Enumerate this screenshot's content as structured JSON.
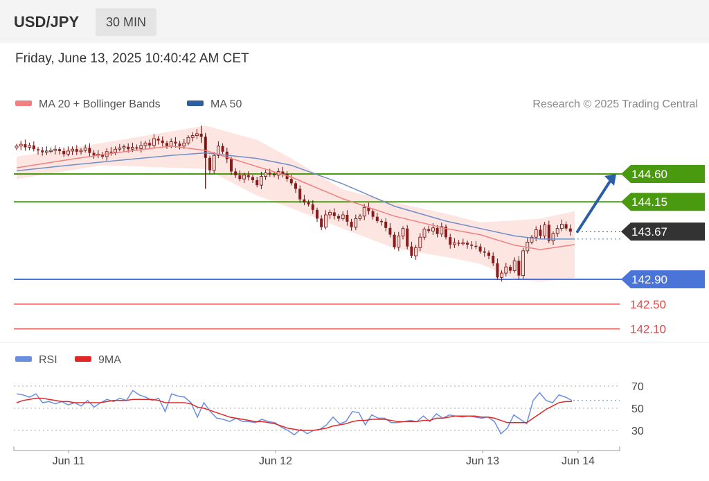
{
  "header": {
    "symbol": "USD/JPY",
    "timeframe": "30 MIN",
    "datetime": "Friday, June 13, 2025 10:40:42 AM CET"
  },
  "legend": {
    "ma20_label": "MA 20 + Bollinger Bands",
    "ma50_label": "MA 50",
    "credit": "Research © 2025 Trading Central",
    "rsi_label": "RSI",
    "rsi_ma_label": "9MA"
  },
  "colors": {
    "ma20": "#f08080",
    "ma50": "#2f5f9f",
    "resistance": "#4a9a10",
    "support_blue": "#4a74d8",
    "support_red": "#e04848",
    "bull": "#f5d5cf",
    "bear": "#8b1a1a",
    "arrow": "#2a5fa8",
    "current": "#333333",
    "rsi": "#6a8fe0",
    "rsi_ma": "#e02828",
    "band": "#fde0dc"
  },
  "chart_data": [
    {
      "type": "candlestick",
      "title": "USD/JPY 30 MIN",
      "x_labels": [
        "Jun 11",
        "Jun 12",
        "Jun 13",
        "Jun 14"
      ],
      "ylim": [
        141.9,
        146.3
      ],
      "levels": [
        {
          "value": 144.6,
          "label": "144.60",
          "kind": "resistance"
        },
        {
          "value": 144.15,
          "label": "144.15",
          "kind": "resistance"
        },
        {
          "value": 143.67,
          "label": "143.67",
          "kind": "current"
        },
        {
          "value": 142.9,
          "label": "142.90",
          "kind": "support"
        },
        {
          "value": 142.5,
          "label": "142.50",
          "kind": "support"
        },
        {
          "value": 142.1,
          "label": "142.10",
          "kind": "support"
        }
      ],
      "close_series": [
        145.05,
        145.08,
        145.03,
        145.06,
        145.0,
        144.98,
        144.95,
        144.97,
        144.98,
        145.0,
        144.97,
        144.92,
        144.97,
        145.0,
        144.96,
        144.98,
        145.02,
        144.94,
        144.9,
        144.92,
        144.88,
        144.96,
        144.95,
        145.0,
        145.02,
        145.04,
        145.0,
        145.03,
        145.01,
        145.06,
        145.1,
        145.06,
        145.17,
        145.14,
        145.1,
        145.05,
        145.12,
        145.09,
        145.05,
        145.1,
        145.19,
        145.22,
        145.25,
        145.2,
        144.86,
        144.66,
        144.9,
        145.05,
        144.96,
        144.84,
        144.64,
        144.58,
        144.52,
        144.58,
        144.55,
        144.5,
        144.42,
        144.56,
        144.62,
        144.6,
        144.58,
        144.64,
        144.6,
        144.52,
        144.45,
        144.36,
        144.19,
        144.14,
        144.11,
        144.02,
        143.88,
        143.74,
        143.94,
        143.98,
        143.92,
        143.88,
        143.94,
        143.83,
        143.74,
        143.88,
        143.92,
        144.06,
        144.0,
        143.91,
        143.84,
        143.83,
        143.73,
        143.62,
        143.42,
        143.6,
        143.72,
        143.43,
        143.28,
        143.41,
        143.58,
        143.71,
        143.68,
        143.73,
        143.63,
        143.75,
        143.58,
        143.46,
        143.49,
        143.48,
        143.49,
        143.46,
        143.44,
        143.43,
        143.35,
        143.33,
        143.28,
        143.16,
        142.93,
        143.0,
        143.1,
        143.04,
        143.2,
        142.96,
        143.36,
        143.5,
        143.58,
        143.7,
        143.6,
        143.78,
        143.52,
        143.64,
        143.72,
        143.79,
        143.72,
        143.67
      ],
      "ma20_points": [
        [
          0,
          144.7
        ],
        [
          12,
          144.83
        ],
        [
          24,
          144.95
        ],
        [
          36,
          145.05
        ],
        [
          44,
          144.98
        ],
        [
          56,
          144.72
        ],
        [
          64,
          144.55
        ],
        [
          76,
          144.2
        ],
        [
          88,
          143.92
        ],
        [
          100,
          143.72
        ],
        [
          108,
          143.62
        ],
        [
          116,
          143.45
        ],
        [
          122,
          143.38
        ],
        [
          130,
          143.46
        ]
      ],
      "ma50_points": [
        [
          0,
          144.65
        ],
        [
          12,
          144.74
        ],
        [
          24,
          144.82
        ],
        [
          36,
          144.9
        ],
        [
          44,
          144.94
        ],
        [
          56,
          144.85
        ],
        [
          64,
          144.74
        ],
        [
          76,
          144.44
        ],
        [
          88,
          144.08
        ],
        [
          100,
          143.84
        ],
        [
          108,
          143.72
        ],
        [
          116,
          143.6
        ],
        [
          122,
          143.55
        ],
        [
          130,
          143.55
        ]
      ],
      "boll_upper": [
        [
          0,
          144.88
        ],
        [
          20,
          145.1
        ],
        [
          44,
          145.38
        ],
        [
          56,
          145.15
        ],
        [
          64,
          144.85
        ],
        [
          76,
          144.35
        ],
        [
          88,
          144.14
        ],
        [
          100,
          143.96
        ],
        [
          108,
          143.82
        ],
        [
          116,
          143.85
        ],
        [
          122,
          143.88
        ],
        [
          130,
          144.0
        ]
      ],
      "boll_lower": [
        [
          0,
          144.52
        ],
        [
          20,
          144.74
        ],
        [
          44,
          144.68
        ],
        [
          56,
          144.25
        ],
        [
          64,
          144.05
        ],
        [
          76,
          143.72
        ],
        [
          88,
          143.4
        ],
        [
          100,
          143.26
        ],
        [
          108,
          143.15
        ],
        [
          116,
          142.9
        ],
        [
          122,
          142.86
        ],
        [
          130,
          142.92
        ]
      ],
      "projection": {
        "from": [
          130,
          143.67
        ],
        "to": [
          140,
          144.6
        ]
      }
    },
    {
      "type": "line",
      "title": "RSI",
      "ylim": [
        20,
        80
      ],
      "y_ticks": [
        70,
        50,
        30
      ],
      "series": [
        {
          "name": "RSI",
          "values": [
            63,
            62,
            60,
            63,
            55,
            56,
            54,
            56,
            53,
            55,
            52,
            57,
            51,
            55,
            58,
            56,
            59,
            57,
            66,
            62,
            60,
            57,
            59,
            47,
            63,
            61,
            60,
            55,
            42,
            55,
            47,
            41,
            40,
            38,
            41,
            38,
            38,
            37,
            40,
            38,
            37,
            33,
            30,
            26,
            31,
            27,
            30,
            31,
            35,
            42,
            36,
            38,
            47,
            46,
            35,
            44,
            41,
            41,
            37,
            37,
            38,
            39,
            38,
            43,
            38,
            45,
            41,
            44,
            43,
            42,
            43,
            42,
            41,
            42,
            38,
            27,
            32,
            44,
            40,
            36,
            57,
            64,
            57,
            55,
            62,
            60,
            57
          ]
        },
        {
          "name": "9MA",
          "values": [
            55,
            57,
            58,
            59,
            59,
            58,
            57,
            56,
            56,
            55,
            55,
            55,
            55,
            55,
            56,
            57,
            57,
            57,
            58,
            58,
            58,
            58,
            57,
            55,
            55,
            55,
            55,
            54,
            51,
            50,
            48,
            46,
            44,
            42,
            41,
            40,
            39,
            38,
            38,
            37,
            36,
            34,
            32,
            31,
            30,
            30,
            30,
            31,
            32,
            34,
            35,
            36,
            38,
            39,
            39,
            40,
            40,
            40,
            39,
            38,
            38,
            38,
            38,
            39,
            39,
            41,
            41,
            42,
            43,
            43,
            43,
            43,
            42,
            42,
            41,
            39,
            37,
            37,
            37,
            37,
            41,
            45,
            49,
            52,
            55,
            56,
            56
          ]
        }
      ]
    }
  ]
}
